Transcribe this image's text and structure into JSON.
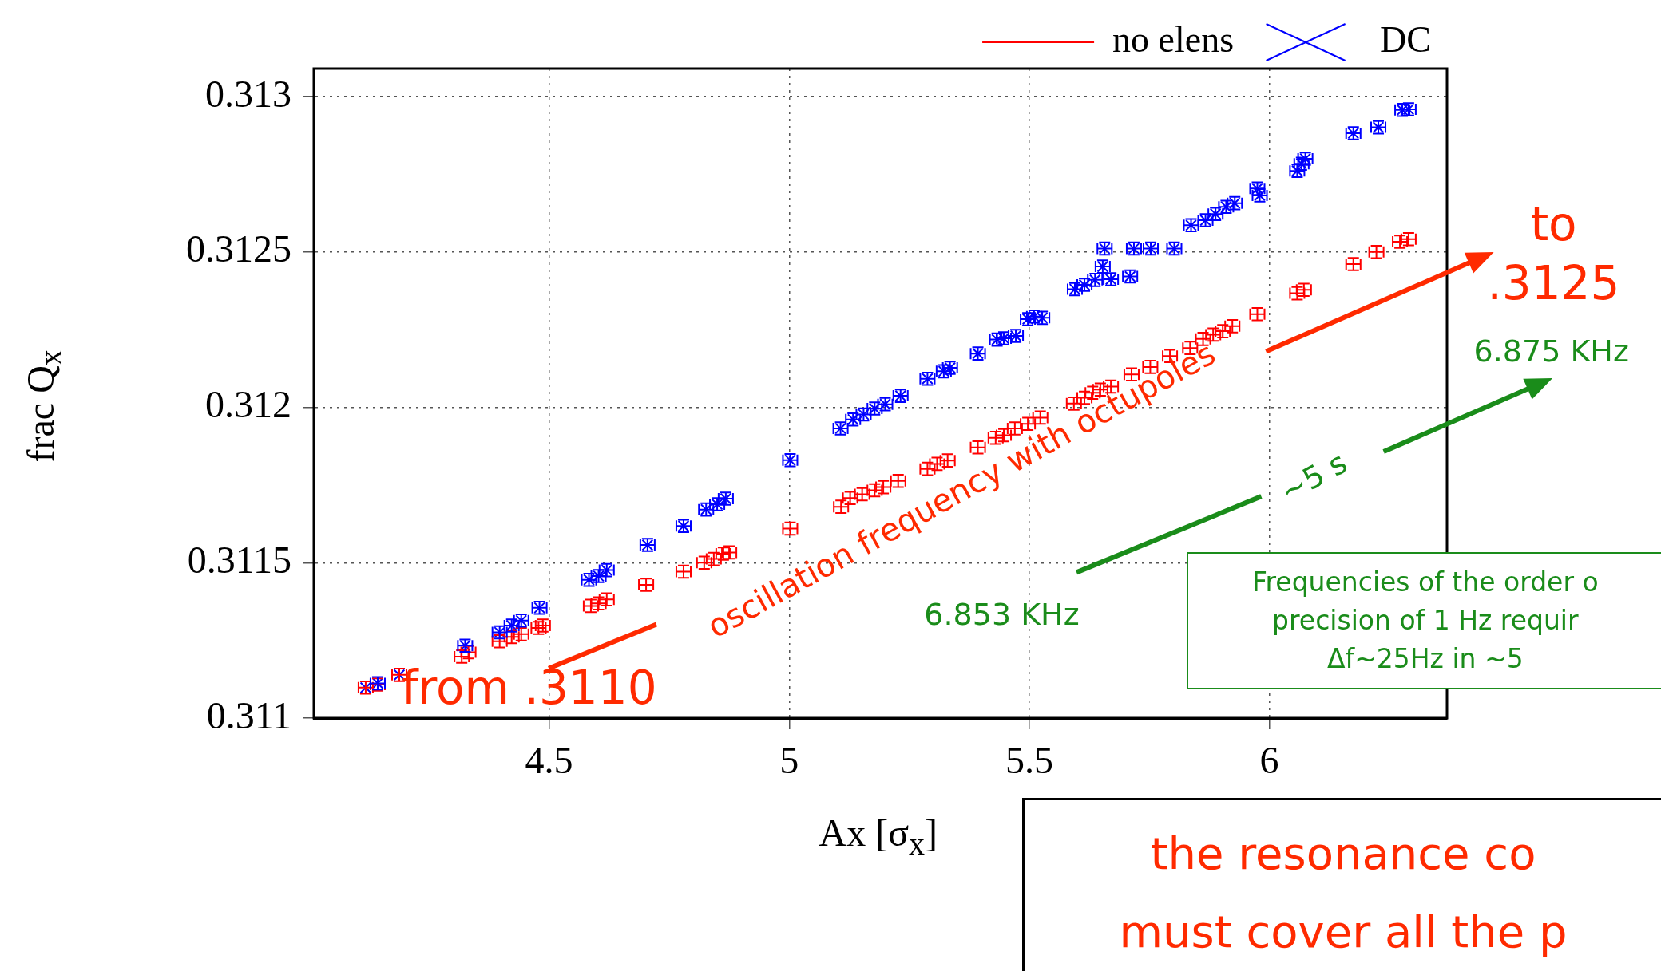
{
  "chart_data": {
    "type": "scatter",
    "xlabel": "Ax [σ$_{x}$]",
    "ylabel": "frac Q$_{x}$",
    "xlim": [
      4.01,
      6.37
    ],
    "ylim": [
      0.311,
      0.31309
    ],
    "xticks": [
      4.5,
      5,
      5.5,
      6
    ],
    "yticks": [
      0.311,
      0.3115,
      0.312,
      0.3125,
      0.313
    ],
    "grid": true,
    "legend": "top right",
    "series": [
      {
        "name": "no elens",
        "color": "#ff0000",
        "x": [
          4.118,
          4.143,
          4.188,
          4.318,
          4.332,
          4.397,
          4.422,
          4.442,
          4.478,
          4.487,
          4.587,
          4.603,
          4.62,
          4.702,
          4.78,
          4.823,
          4.843,
          4.863,
          4.875,
          5.002,
          5.108,
          5.127,
          5.152,
          5.178,
          5.196,
          5.227,
          5.288,
          5.308,
          5.33,
          5.393,
          5.43,
          5.447,
          5.47,
          5.497,
          5.523,
          5.593,
          5.615,
          5.632,
          5.648,
          5.67,
          5.713,
          5.752,
          5.793,
          5.835,
          5.862,
          5.883,
          5.903,
          5.923,
          5.975,
          6.058,
          6.072,
          6.175,
          6.223,
          6.272,
          6.29
        ],
        "values": [
          0.311098,
          0.311108,
          0.311139,
          0.311198,
          0.311212,
          0.311247,
          0.311261,
          0.31127,
          0.31129,
          0.311298,
          0.311361,
          0.311369,
          0.311382,
          0.311429,
          0.311471,
          0.3115,
          0.311512,
          0.311529,
          0.311533,
          0.31161,
          0.31168,
          0.311708,
          0.31172,
          0.311733,
          0.311743,
          0.311763,
          0.311802,
          0.311818,
          0.311829,
          0.311871,
          0.311902,
          0.31191,
          0.311932,
          0.311947,
          0.311967,
          0.312012,
          0.312031,
          0.312047,
          0.312057,
          0.312067,
          0.312106,
          0.31213,
          0.312165,
          0.312191,
          0.31222,
          0.312234,
          0.312245,
          0.312261,
          0.3123,
          0.312367,
          0.312378,
          0.312461,
          0.3125,
          0.312533,
          0.312541
        ],
        "xerrors": [
          0.015,
          0.015,
          0.015,
          0.015,
          0.015,
          0.015,
          0.015,
          0.015,
          0.015,
          0.015,
          0.015,
          0.015,
          0.015,
          0.015,
          0.015,
          0.015,
          0.015,
          0.015,
          0.015,
          0.015,
          0.015,
          0.015,
          0.015,
          0.015,
          0.015,
          0.015,
          0.015,
          0.015,
          0.015,
          0.015,
          0.015,
          0.015,
          0.015,
          0.015,
          0.015,
          0.015,
          0.015,
          0.015,
          0.015,
          0.015,
          0.015,
          0.015,
          0.015,
          0.015,
          0.015,
          0.015,
          0.015,
          0.015,
          0.015,
          0.015,
          0.015,
          0.015,
          0.015,
          0.015,
          0.015
        ],
        "errors": [
          2e-05,
          2e-05,
          2e-05,
          2e-05,
          2e-05,
          2e-05,
          2e-05,
          2e-05,
          2e-05,
          2e-05,
          2e-05,
          2e-05,
          2e-05,
          2e-05,
          2e-05,
          2e-05,
          2e-05,
          2e-05,
          2e-05,
          2e-05,
          2e-05,
          2e-05,
          2e-05,
          2e-05,
          2e-05,
          2e-05,
          2e-05,
          2e-05,
          2e-05,
          2e-05,
          2e-05,
          2e-05,
          2e-05,
          2e-05,
          2e-05,
          2e-05,
          2e-05,
          2e-05,
          2e-05,
          2e-05,
          2e-05,
          2e-05,
          2e-05,
          2e-05,
          2e-05,
          2e-05,
          2e-05,
          2e-05,
          2e-05,
          2e-05,
          2e-05,
          2e-05,
          2e-05,
          2e-05,
          2e-05
        ]
      },
      {
        "name": "DC",
        "color": "#0000ff",
        "marker": "cross",
        "x": [
          4.118,
          4.143,
          4.188,
          4.325,
          4.397,
          4.422,
          4.442,
          4.48,
          4.583,
          4.603,
          4.62,
          4.705,
          4.78,
          4.827,
          4.85,
          4.868,
          5.002,
          5.107,
          5.133,
          5.155,
          5.178,
          5.2,
          5.232,
          5.288,
          5.322,
          5.335,
          5.393,
          5.433,
          5.447,
          5.472,
          5.497,
          5.51,
          5.527,
          5.595,
          5.615,
          5.637,
          5.653,
          5.657,
          5.67,
          5.71,
          5.718,
          5.753,
          5.802,
          5.837,
          5.867,
          5.888,
          5.91,
          5.928,
          5.975,
          5.98,
          6.058,
          6.067,
          6.075,
          6.175,
          6.227,
          6.277,
          6.29
        ],
        "values": [
          0.311098,
          0.311112,
          0.311139,
          0.311233,
          0.311276,
          0.311298,
          0.311314,
          0.311355,
          0.311445,
          0.311457,
          0.311476,
          0.311557,
          0.311618,
          0.311671,
          0.311688,
          0.311706,
          0.31183,
          0.311932,
          0.311961,
          0.311977,
          0.311996,
          0.31201,
          0.312037,
          0.312092,
          0.312116,
          0.312127,
          0.312173,
          0.312218,
          0.312222,
          0.31223,
          0.312284,
          0.312292,
          0.312288,
          0.31238,
          0.312394,
          0.31241,
          0.312453,
          0.312511,
          0.312412,
          0.312421,
          0.312511,
          0.312511,
          0.312511,
          0.312586,
          0.312602,
          0.312622,
          0.312645,
          0.312657,
          0.312704,
          0.312682,
          0.312761,
          0.312784,
          0.3128,
          0.312882,
          0.312901,
          0.312957,
          0.312959
        ],
        "xerrors": [
          null,
          0.015,
          null,
          0.015,
          0.015,
          0.015,
          0.015,
          0.015,
          0.015,
          0.015,
          0.015,
          0.015,
          0.015,
          0.015,
          0.015,
          0.015,
          0.015,
          0.015,
          0.015,
          0.015,
          0.015,
          0.015,
          0.015,
          0.015,
          0.015,
          0.015,
          0.015,
          0.015,
          0.015,
          0.015,
          0.015,
          0.015,
          0.015,
          0.015,
          0.015,
          0.015,
          0.015,
          0.015,
          0.015,
          0.015,
          0.015,
          0.015,
          0.015,
          0.015,
          0.015,
          0.015,
          0.015,
          0.015,
          0.015,
          0.015,
          0.015,
          0.015,
          0.015,
          0.015,
          0.015,
          0.015,
          0.015
        ],
        "errors": [
          null,
          2e-05,
          null,
          2e-05,
          2e-05,
          2e-05,
          2e-05,
          2e-05,
          2e-05,
          2e-05,
          2e-05,
          2e-05,
          2e-05,
          2e-05,
          2e-05,
          2e-05,
          2e-05,
          2e-05,
          2e-05,
          2e-05,
          2e-05,
          2e-05,
          2e-05,
          2e-05,
          2e-05,
          2e-05,
          2e-05,
          2e-05,
          2e-05,
          2e-05,
          2e-05,
          2e-05,
          2e-05,
          2e-05,
          2e-05,
          2e-05,
          2e-05,
          2e-05,
          2e-05,
          2e-05,
          2e-05,
          2e-05,
          2e-05,
          2e-05,
          2e-05,
          2e-05,
          2e-05,
          2e-05,
          2e-05,
          2e-05,
          2e-05,
          2e-05,
          2e-05,
          2e-05,
          2e-05,
          2e-05,
          2e-05
        ]
      }
    ],
    "annotations": [
      "from .3110",
      "oscillation frequency with octupoles",
      "to",
      ".3125",
      "6.875 KHz",
      "~5 s",
      "6.853 KHz",
      "Frequencies of the order o",
      "precision of 1 Hz requir",
      "Δf~25Hz in ~5",
      "the resonance co",
      "must cover all the p"
    ]
  }
}
